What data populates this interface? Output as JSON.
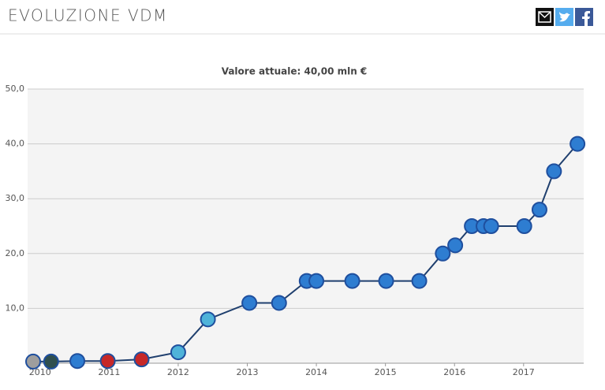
{
  "header": {
    "title": "EVOLUZIONE VDM"
  },
  "chart_data": {
    "type": "line",
    "title": "Valore attuale: 40,00 mln €",
    "series": [
      {
        "color": "#1f3f6e",
        "x": [
          2009.9,
          2010.16,
          2010.54,
          2010.98,
          2011.47,
          2012.0,
          2012.43,
          2013.03,
          2013.46,
          2013.86,
          2014.0,
          2014.52,
          2015.01,
          2015.49,
          2015.83,
          2016.01,
          2016.25,
          2016.42,
          2016.53,
          2017.01,
          2017.23,
          2017.44,
          2017.78
        ],
        "values": [
          0.3,
          0.3,
          0.4,
          0.4,
          0.7,
          2,
          8,
          11,
          11,
          15,
          15,
          15,
          15,
          15,
          20,
          21.5,
          25,
          25,
          25,
          25,
          28,
          35,
          40
        ],
        "marker_colors": [
          "#9e9e9e",
          "#2f4f4f",
          "#2e7dd1",
          "#c62828",
          "#c62828",
          "#4fb3d9",
          "#4fb3d9",
          "#2e7dd1",
          "#2e7dd1",
          "#2e7dd1",
          "#2e7dd1",
          "#2e7dd1",
          "#2e7dd1",
          "#2e7dd1",
          "#2e7dd1",
          "#2e7dd1",
          "#2e7dd1",
          "#2e7dd1",
          "#2e7dd1",
          "#2e7dd1",
          "#2e7dd1",
          "#2e7dd1",
          "#2e7dd1"
        ]
      }
    ],
    "xlim": [
      2009.82,
      2017.87
    ],
    "xticks": [
      2010,
      2011,
      2012,
      2013,
      2014,
      2015,
      2016,
      2017
    ],
    "ylim": [
      0,
      50
    ],
    "yticks": [
      {
        "value": 10,
        "label": "10,0"
      },
      {
        "value": 20,
        "label": "20,0"
      },
      {
        "value": 30,
        "label": "30,0"
      },
      {
        "value": 40,
        "label": "40,0"
      },
      {
        "value": 50,
        "label": "50,0"
      }
    ],
    "grid": true,
    "background": "#f4f4f4"
  }
}
